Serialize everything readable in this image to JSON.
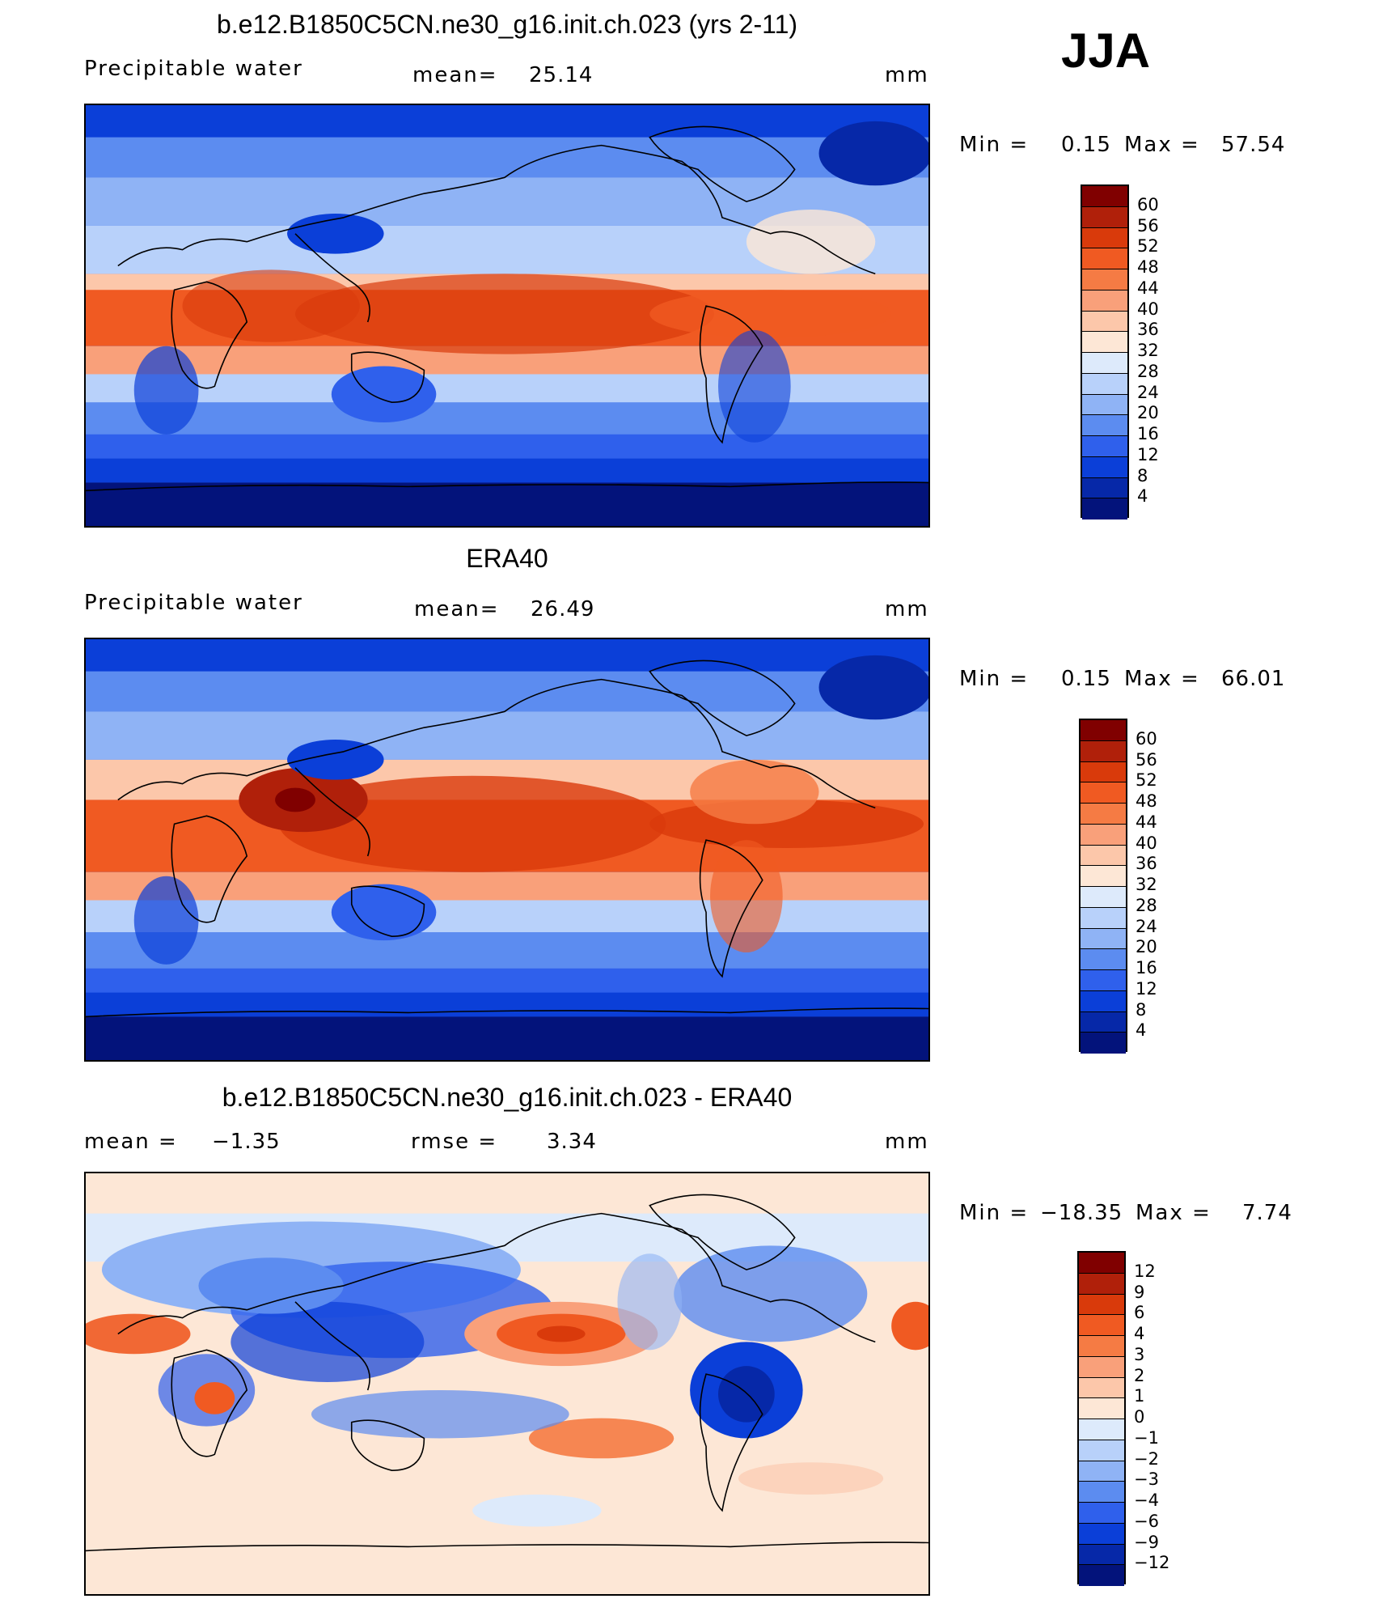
{
  "season": "JJA",
  "panels": [
    {
      "title": "b.e12.B1850C5CN.ne30_g16.init.ch.023 (yrs 2-11)",
      "left_label": "Precipitable water",
      "mean_label": "mean=",
      "mean_value": "25.14",
      "units": "mm",
      "min_label": "Min =",
      "min_value": "0.15",
      "max_label": "Max =",
      "max_value": "57.54",
      "colorbar": {
        "labels": [
          "60",
          "56",
          "52",
          "48",
          "44",
          "40",
          "36",
          "32",
          "28",
          "24",
          "20",
          "16",
          "12",
          "8",
          "4"
        ],
        "colors": [
          "#800000",
          "#b0200a",
          "#d93a0b",
          "#f05a22",
          "#f57b44",
          "#f9a07a",
          "#fcc7aa",
          "#fde7d6",
          "#ddeafb",
          "#b8d1fa",
          "#8fb3f5",
          "#5c8cf0",
          "#2f60ec",
          "#0b3fd8",
          "#0628a8",
          "#03137b"
        ]
      }
    },
    {
      "title": "ERA40",
      "left_label": "Precipitable water",
      "mean_label": "mean=",
      "mean_value": "26.49",
      "units": "mm",
      "min_label": "Min =",
      "min_value": "0.15",
      "max_label": "Max =",
      "max_value": "66.01",
      "colorbar": {
        "labels": [
          "60",
          "56",
          "52",
          "48",
          "44",
          "40",
          "36",
          "32",
          "28",
          "24",
          "20",
          "16",
          "12",
          "8",
          "4"
        ],
        "colors": [
          "#800000",
          "#b0200a",
          "#d93a0b",
          "#f05a22",
          "#f57b44",
          "#f9a07a",
          "#fcc7aa",
          "#fde7d6",
          "#ddeafb",
          "#b8d1fa",
          "#8fb3f5",
          "#5c8cf0",
          "#2f60ec",
          "#0b3fd8",
          "#0628a8",
          "#03137b"
        ]
      }
    },
    {
      "title": "b.e12.B1850C5CN.ne30_g16.init.ch.023 - ERA40",
      "left_label": "mean =",
      "mean_label": "rmse =",
      "left_value": "−1.35",
      "mean_value": "3.34",
      "units": "mm",
      "min_label": "Min =",
      "min_value": "−18.35",
      "max_label": "Max =",
      "max_value": "7.74",
      "colorbar": {
        "labels": [
          "12",
          "9",
          "6",
          "4",
          "3",
          "2",
          "1",
          "0",
          "−1",
          "−2",
          "−3",
          "−4",
          "−6",
          "−9",
          "−12"
        ],
        "colors": [
          "#800000",
          "#b0200a",
          "#d93a0b",
          "#f05a22",
          "#f57b44",
          "#f9a07a",
          "#fcc7aa",
          "#fde7d6",
          "#ddeafb",
          "#b8d1fa",
          "#8fb3f5",
          "#5c8cf0",
          "#2f60ec",
          "#0b3fd8",
          "#0628a8",
          "#03137b"
        ]
      }
    }
  ]
}
